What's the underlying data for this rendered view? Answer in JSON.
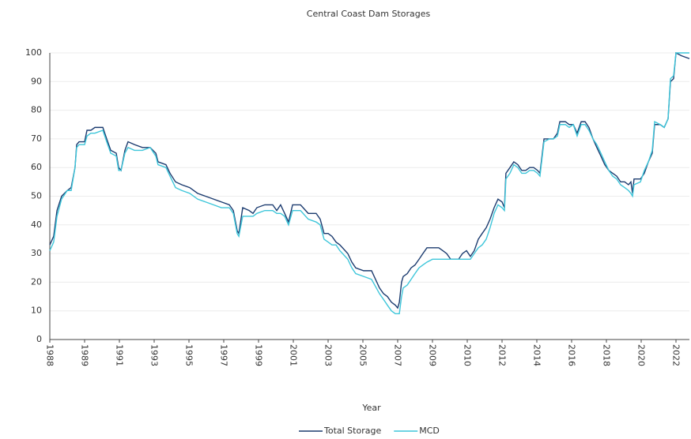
{
  "chart_data": {
    "type": "line",
    "title": "Central Coast Dam Storages",
    "x_label": "Year",
    "x": [
      1988.0,
      1988.21,
      1988.39,
      1988.64,
      1988.95,
      1989.16,
      1989.37,
      1989.46,
      1989.59,
      1989.89,
      1990.02,
      1990.23,
      1990.45,
      1990.88,
      1991.09,
      1991.31,
      1991.61,
      1991.74,
      1991.87,
      1992.08,
      1992.25,
      1992.6,
      1993.03,
      1993.45,
      1993.76,
      1993.88,
      1994.31,
      1994.53,
      1994.83,
      1995.17,
      1995.6,
      1996.03,
      1996.46,
      1996.89,
      1997.32,
      1997.75,
      1997.97,
      1998.18,
      1998.27,
      1998.48,
      1998.83,
      1999.04,
      1999.25,
      1999.68,
      2000.11,
      2000.33,
      2000.54,
      2000.76,
      2000.97,
      2001.19,
      2001.62,
      2002.04,
      2002.47,
      2002.69,
      2002.9,
      2003.12,
      2003.33,
      2003.55,
      2003.76,
      2004.19,
      2004.41,
      2004.62,
      2005.05,
      2005.48,
      2005.91,
      2006.13,
      2006.34,
      2006.56,
      2006.77,
      2006.9,
      2006.99,
      2007.11,
      2007.2,
      2007.42,
      2007.63,
      2007.84,
      2008.06,
      2008.27,
      2008.49,
      2008.79,
      2009.13,
      2009.35,
      2009.56,
      2009.78,
      2009.99,
      2010.21,
      2010.42,
      2010.64,
      2010.85,
      2011.06,
      2011.28,
      2011.49,
      2011.71,
      2011.92,
      2012.14,
      2012.35,
      2012.57,
      2012.7,
      2012.78,
      2013.0,
      2013.21,
      2013.43,
      2013.64,
      2013.86,
      2014.07,
      2014.29,
      2014.5,
      2014.63,
      2014.85,
      2015.15,
      2015.36,
      2015.58,
      2015.71,
      2016.01,
      2016.22,
      2016.44,
      2016.65,
      2016.87,
      2017.08,
      2017.29,
      2017.51,
      2017.72,
      2017.94,
      2018.15,
      2018.37,
      2018.58,
      2018.8,
      2019.01,
      2019.23,
      2019.44,
      2019.57,
      2019.66,
      2019.74,
      2020.09,
      2020.3,
      2020.52,
      2020.73,
      2020.86,
      2021.16,
      2021.38,
      2021.59,
      2021.72,
      2021.89,
      2022.02,
      2022.32,
      2022.75
    ],
    "series": [
      {
        "name": "Total Storage",
        "color": "#1b3b6f",
        "values": [
          33,
          36,
          45,
          50,
          52,
          53,
          60,
          68,
          69,
          69,
          73,
          73,
          74,
          74,
          70,
          66,
          65,
          60,
          59,
          66,
          69,
          68,
          67,
          67,
          65,
          62,
          61,
          58,
          55,
          54,
          53,
          51,
          50,
          49,
          48,
          47,
          45,
          38,
          37,
          46,
          45,
          44,
          46,
          47,
          47,
          45,
          47,
          44,
          41,
          47,
          47,
          44,
          44,
          42,
          37,
          37,
          36,
          34,
          33,
          30,
          27,
          25,
          24,
          24,
          18,
          16,
          15,
          13,
          12,
          11,
          13,
          20,
          22,
          23,
          25,
          26,
          28,
          30,
          32,
          32,
          32,
          31,
          30,
          28,
          28,
          28,
          30,
          31,
          29,
          31,
          35,
          37,
          39,
          42,
          46,
          49,
          48,
          46,
          58,
          60,
          62,
          61,
          59,
          59,
          60,
          60,
          59,
          58,
          70,
          70,
          70,
          72,
          76,
          76,
          75,
          75,
          72,
          76,
          76,
          74,
          70,
          67,
          64,
          61,
          59,
          58,
          57,
          55,
          55,
          54,
          55,
          51,
          56,
          56,
          58,
          62,
          65,
          75,
          75,
          74,
          77,
          90,
          91,
          100,
          99,
          98
        ]
      },
      {
        "name": "MCD",
        "color": "#3ec6da",
        "values": [
          31,
          34,
          43,
          49,
          52,
          52,
          60,
          67,
          68,
          68,
          71,
          72,
          72,
          73,
          69,
          65,
          64,
          59,
          59,
          65,
          67,
          66,
          66,
          67,
          64,
          61,
          60,
          57,
          53,
          52,
          51,
          49,
          48,
          47,
          46,
          46,
          44,
          37,
          36,
          43,
          43,
          43,
          44,
          45,
          45,
          44,
          44,
          43,
          40,
          45,
          45,
          42,
          41,
          40,
          35,
          34,
          33,
          33,
          31,
          28,
          25,
          23,
          22,
          21,
          16,
          14,
          12,
          10,
          9,
          9,
          9,
          15,
          18,
          19,
          21,
          23,
          25,
          26,
          27,
          28,
          28,
          28,
          28,
          28,
          28,
          28,
          28,
          28,
          28,
          30,
          32,
          33,
          35,
          39,
          44,
          47,
          46,
          45,
          56,
          58,
          61,
          60,
          58,
          58,
          59,
          59,
          58,
          57,
          69,
          70,
          70,
          71,
          75,
          75,
          74,
          75,
          71,
          75,
          75,
          73,
          70,
          68,
          65,
          62,
          59,
          57,
          56,
          54,
          53,
          52,
          51,
          50,
          54,
          55,
          59,
          62,
          66,
          76,
          75,
          74,
          77,
          91,
          92,
          100,
          100,
          100
        ]
      }
    ],
    "xlim": [
      1988,
      2022.75
    ],
    "xticks": [
      {
        "value": 1988,
        "label": "1988"
      },
      {
        "value": 1989.89,
        "label": "1989"
      },
      {
        "value": 1991.78,
        "label": "1991"
      },
      {
        "value": 1993.67,
        "label": "1993"
      },
      {
        "value": 1995.56,
        "label": "1995"
      },
      {
        "value": 1997.45,
        "label": "1997"
      },
      {
        "value": 1999.34,
        "label": "1999"
      },
      {
        "value": 2001.23,
        "label": "2001"
      },
      {
        "value": 2003.12,
        "label": "2003"
      },
      {
        "value": 2005.01,
        "label": "2005"
      },
      {
        "value": 2006.9,
        "label": "2007"
      },
      {
        "value": 2008.79,
        "label": "2009"
      },
      {
        "value": 2010.68,
        "label": "2010"
      },
      {
        "value": 2012.57,
        "label": "2012"
      },
      {
        "value": 2014.46,
        "label": "2014"
      },
      {
        "value": 2016.35,
        "label": "2016"
      },
      {
        "value": 2018.24,
        "label": "2018"
      },
      {
        "value": 2020.13,
        "label": "2020"
      },
      {
        "value": 2022.02,
        "label": "2022"
      }
    ],
    "ylim": [
      0,
      100
    ],
    "yticks": [
      0,
      10,
      20,
      30,
      40,
      50,
      60,
      70,
      80,
      90,
      100
    ],
    "grid": true,
    "legend": "bottom"
  }
}
